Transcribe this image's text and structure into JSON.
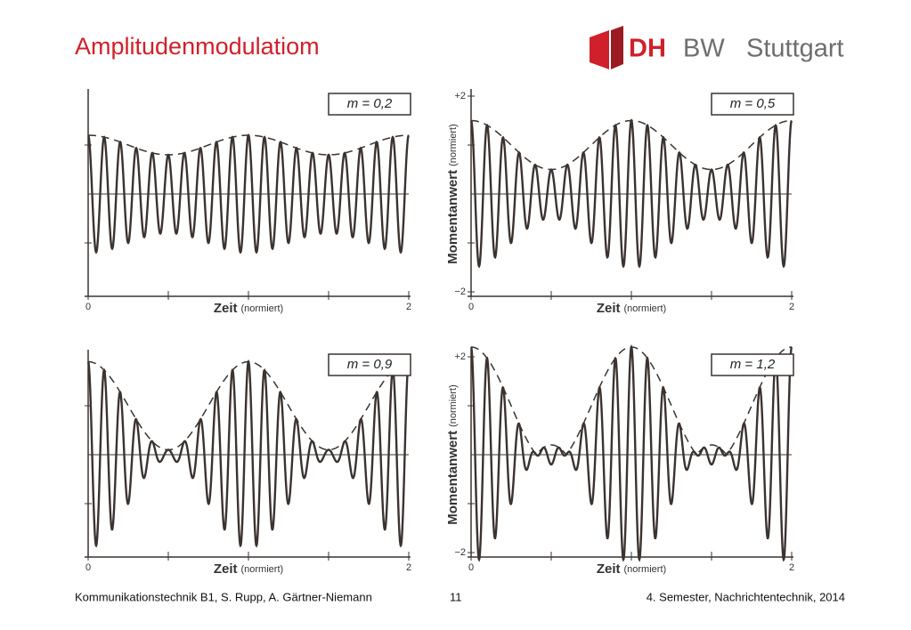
{
  "header": {
    "title": "Amplitudenmodulatiom",
    "logo": {
      "mark": "DH",
      "rest": "BW",
      "city": "Stuttgart"
    }
  },
  "figure": {
    "x_label": "Zeit",
    "x_unit": "(normiert)",
    "y_label": "Momentanwert",
    "y_unit": "(normiert)",
    "panels": [
      {
        "modulation": {
          "value": 0.2,
          "label": "m = 0,2"
        },
        "xticks": [
          0,
          2
        ]
      },
      {
        "modulation": {
          "value": 0.5,
          "label": "m = 0,5"
        },
        "xticks": [
          0,
          2
        ],
        "yticks": [
          {
            "value": 2,
            "label": "+2"
          },
          {
            "value": -2,
            "label": "−2"
          }
        ]
      },
      {
        "modulation": {
          "value": 0.9,
          "label": "m = 0,9"
        },
        "xticks": [
          0,
          2
        ]
      },
      {
        "modulation": {
          "value": 1.2,
          "label": "m = 1,2"
        },
        "xticks": [
          0,
          2
        ],
        "yticks": [
          {
            "value": 2,
            "label": "+2"
          },
          {
            "value": -2,
            "label": "−2"
          }
        ]
      }
    ]
  },
  "footer": {
    "left": "Kommunikationstechnik B1, S. Rupp, A. Gärtner-Niemann",
    "page": "11",
    "right": "4. Semester, Nachrichtentechnik, 2014"
  }
}
